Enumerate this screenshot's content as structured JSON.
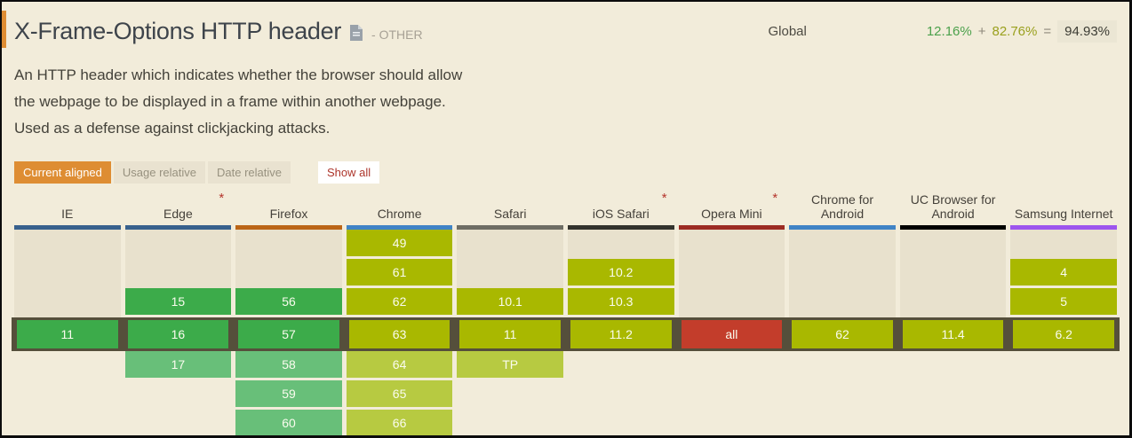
{
  "header": {
    "title": "X-Frame-Options HTTP header",
    "category": "- OTHER",
    "global_label": "Global",
    "stats": {
      "full_support_pct": "12.16%",
      "plus": "+",
      "partial_support_pct": "82.76%",
      "equals": "=",
      "total_pct": "94.93%"
    }
  },
  "description": "An HTTP header which indicates whether the browser should allow\nthe webpage to be displayed in a frame within another webpage.\nUsed as a defense against clickjacking attacks.",
  "toolbar": {
    "tabs": [
      {
        "label": "Current aligned",
        "active": true
      },
      {
        "label": "Usage relative",
        "active": false
      },
      {
        "label": "Date relative",
        "active": false
      }
    ],
    "show_all_label": "Show all"
  },
  "colors": {
    "green": "#3cab4a",
    "green_light": "#68bf79",
    "olive": "#a9b800",
    "olive_light": "#b7ca41",
    "red": "#c33d2b",
    "past": "#e8e1cd",
    "current_band": "#554f3b",
    "active_tab_orange": "#de8d33",
    "stat_green": "#4ca14c",
    "stat_olive": "#9aa01e",
    "doc_icon_gray": "#99a1a9"
  },
  "table": {
    "columns": [
      {
        "name": "IE",
        "asterisk": false,
        "accent": "#38618d",
        "cells": [
          {
            "t": "past"
          },
          {
            "t": "past"
          },
          {
            "t": "past"
          },
          {
            "v": "11",
            "t": "green"
          },
          {
            "t": "future"
          },
          {
            "t": "future"
          },
          {
            "t": "future"
          }
        ]
      },
      {
        "name": "Edge",
        "asterisk": true,
        "accent": "#38618d",
        "cells": [
          {
            "t": "past"
          },
          {
            "t": "past"
          },
          {
            "v": "15",
            "t": "green"
          },
          {
            "v": "16",
            "t": "green"
          },
          {
            "v": "17",
            "t": "green_light"
          },
          {
            "t": "future"
          },
          {
            "t": "future"
          }
        ]
      },
      {
        "name": "Firefox",
        "asterisk": false,
        "accent": "#bb6516",
        "cells": [
          {
            "t": "past"
          },
          {
            "t": "past"
          },
          {
            "v": "56",
            "t": "green"
          },
          {
            "v": "57",
            "t": "green"
          },
          {
            "v": "58",
            "t": "green_light"
          },
          {
            "v": "59",
            "t": "green_light"
          },
          {
            "v": "60",
            "t": "green_light"
          }
        ]
      },
      {
        "name": "Chrome",
        "asterisk": false,
        "accent": "#4083c5",
        "cells": [
          {
            "v": "49",
            "t": "olive"
          },
          {
            "v": "61",
            "t": "olive"
          },
          {
            "v": "62",
            "t": "olive"
          },
          {
            "v": "63",
            "t": "olive"
          },
          {
            "v": "64",
            "t": "olive_light"
          },
          {
            "v": "65",
            "t": "olive_light"
          },
          {
            "v": "66",
            "t": "olive_light"
          }
        ]
      },
      {
        "name": "Safari",
        "asterisk": false,
        "accent": "#6e6d64",
        "cells": [
          {
            "t": "past"
          },
          {
            "t": "past"
          },
          {
            "v": "10.1",
            "t": "olive"
          },
          {
            "v": "11",
            "t": "olive"
          },
          {
            "v": "TP",
            "t": "olive_light"
          },
          {
            "t": "future"
          },
          {
            "t": "future"
          }
        ]
      },
      {
        "name": "iOS Safari",
        "asterisk": true,
        "accent": "#33332d",
        "cells": [
          {
            "t": "past"
          },
          {
            "v": "10.2",
            "t": "olive"
          },
          {
            "v": "10.3",
            "t": "olive"
          },
          {
            "v": "11.2",
            "t": "olive"
          },
          {
            "t": "future"
          },
          {
            "t": "future"
          },
          {
            "t": "future"
          }
        ]
      },
      {
        "name": "Opera Mini",
        "asterisk": true,
        "accent": "#9c2b23",
        "cells": [
          {
            "t": "past"
          },
          {
            "t": "past"
          },
          {
            "t": "past"
          },
          {
            "v": "all",
            "t": "red"
          },
          {
            "t": "future"
          },
          {
            "t": "future"
          },
          {
            "t": "future"
          }
        ]
      },
      {
        "name": "Chrome for Android",
        "asterisk": false,
        "accent": "#4083c5",
        "cells": [
          {
            "t": "past"
          },
          {
            "t": "past"
          },
          {
            "t": "past"
          },
          {
            "v": "62",
            "t": "olive"
          },
          {
            "t": "future"
          },
          {
            "t": "future"
          },
          {
            "t": "future"
          }
        ]
      },
      {
        "name": "UC Browser for Android",
        "asterisk": false,
        "accent": "#000000",
        "cells": [
          {
            "t": "past"
          },
          {
            "t": "past"
          },
          {
            "t": "past"
          },
          {
            "v": "11.4",
            "t": "olive"
          },
          {
            "t": "future"
          },
          {
            "t": "future"
          },
          {
            "t": "future"
          }
        ]
      },
      {
        "name": "Samsung Internet",
        "asterisk": false,
        "accent": "#9d55ee",
        "cells": [
          {
            "t": "past"
          },
          {
            "v": "4",
            "t": "olive"
          },
          {
            "v": "5",
            "t": "olive"
          },
          {
            "v": "6.2",
            "t": "olive"
          },
          {
            "t": "future"
          },
          {
            "t": "future"
          },
          {
            "t": "future"
          }
        ]
      }
    ]
  }
}
